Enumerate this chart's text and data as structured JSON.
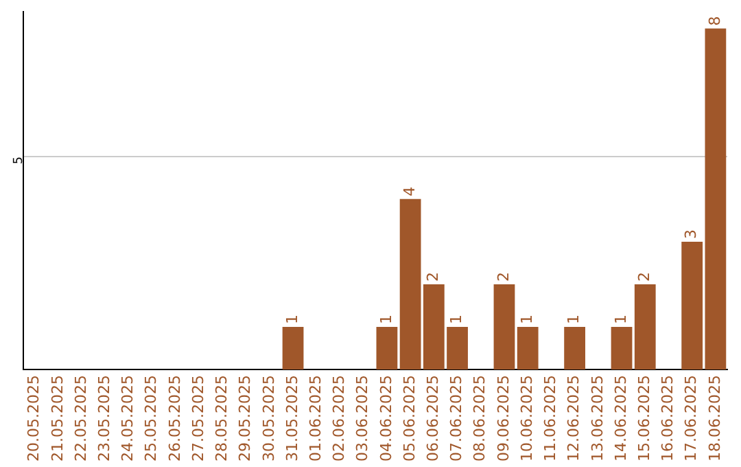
{
  "chart_data": {
    "type": "bar",
    "categories": [
      "20.05.2025",
      "21.05.2025",
      "22.05.2025",
      "23.05.2025",
      "24.05.2025",
      "25.05.2025",
      "26.05.2025",
      "27.05.2025",
      "28.05.2025",
      "29.05.2025",
      "30.05.2025",
      "31.05.2025",
      "01.06.2025",
      "02.06.2025",
      "03.06.2025",
      "04.06.2025",
      "05.06.2025",
      "06.06.2025",
      "07.06.2025",
      "08.06.2025",
      "09.06.2025",
      "10.06.2025",
      "11.06.2025",
      "12.06.2025",
      "13.06.2025",
      "14.06.2025",
      "15.06.2025",
      "16.06.2025",
      "17.06.2025",
      "18.06.2025"
    ],
    "values": [
      0,
      0,
      0,
      0,
      0,
      0,
      0,
      0,
      0,
      0,
      0,
      1,
      0,
      0,
      0,
      1,
      4,
      2,
      1,
      0,
      2,
      1,
      0,
      1,
      0,
      1,
      2,
      0,
      3,
      8
    ],
    "value_labels": [
      null,
      null,
      null,
      null,
      null,
      null,
      null,
      null,
      null,
      null,
      null,
      "1",
      null,
      null,
      null,
      "1",
      "4",
      "2",
      "1",
      null,
      "2",
      "1",
      null,
      "1",
      null,
      "1",
      "2",
      null,
      "3",
      "8"
    ],
    "color": "#a0572a",
    "ylim": [
      0,
      8.4
    ],
    "yticks": [
      5
    ],
    "grid": "y",
    "legend": false
  }
}
